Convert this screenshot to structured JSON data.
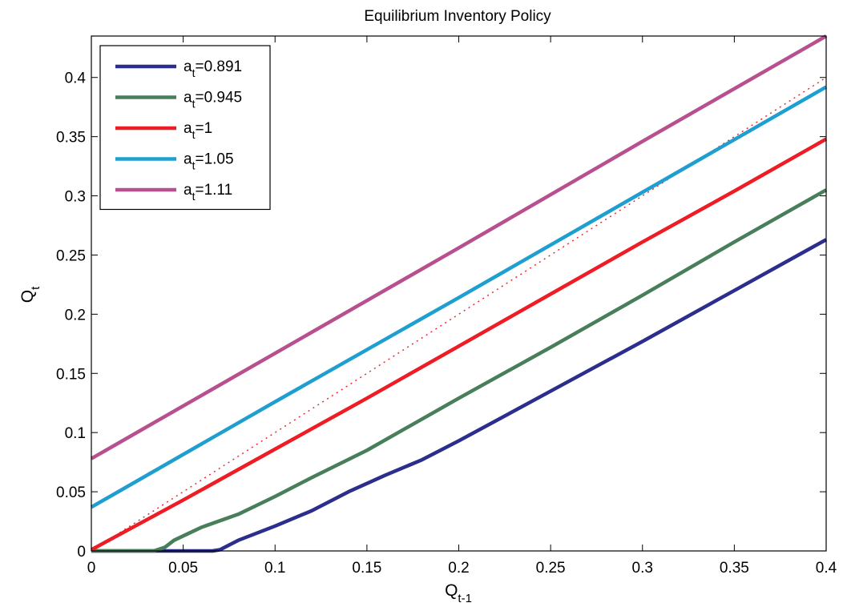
{
  "chart_data": {
    "type": "line",
    "title": "Equilibrium Inventory Policy",
    "xlabel": {
      "base": "Q",
      "sub": "t-1"
    },
    "ylabel": {
      "base": "Q",
      "sub": "t"
    },
    "xlim": [
      0,
      0.4
    ],
    "ylim": [
      0,
      0.435
    ],
    "xticks": [
      0,
      0.05,
      0.1,
      0.15,
      0.2,
      0.25,
      0.3,
      0.35,
      0.4
    ],
    "xtick_labels": [
      "0",
      "0.05",
      "0.1",
      "0.15",
      "0.2",
      "0.25",
      "0.3",
      "0.35",
      "0.4"
    ],
    "yticks": [
      0,
      0.05,
      0.1,
      0.15,
      0.2,
      0.25,
      0.3,
      0.35,
      0.4
    ],
    "ytick_labels": [
      "0",
      "0.05",
      "0.1",
      "0.15",
      "0.2",
      "0.25",
      "0.3",
      "0.35",
      "0.4"
    ],
    "grid": false,
    "legend_position": "top-left",
    "series": [
      {
        "name": "a_t=0.891",
        "label_base": "a",
        "label_sub": "t",
        "label_rest": "=0.891",
        "color": "#2b2e8c",
        "style": "solid",
        "x": [
          0,
          0.066,
          0.07,
          0.08,
          0.1,
          0.12,
          0.14,
          0.16,
          0.18,
          0.2,
          0.25,
          0.3,
          0.35,
          0.4
        ],
        "y": [
          0,
          0,
          0.001,
          0.009,
          0.021,
          0.034,
          0.05,
          0.064,
          0.077,
          0.093,
          0.135,
          0.177,
          0.22,
          0.263
        ]
      },
      {
        "name": "a_t=0.945",
        "label_base": "a",
        "label_sub": "t",
        "label_rest": "=0.945",
        "color": "#497e5b",
        "style": "solid",
        "x": [
          0,
          0.034,
          0.04,
          0.045,
          0.06,
          0.08,
          0.1,
          0.12,
          0.15,
          0.2,
          0.25,
          0.3,
          0.35,
          0.4
        ],
        "y": [
          0,
          0,
          0.003,
          0.009,
          0.02,
          0.031,
          0.046,
          0.062,
          0.085,
          0.129,
          0.172,
          0.216,
          0.261,
          0.305
        ]
      },
      {
        "name": "a_t=1",
        "label_base": "a",
        "label_sub": "t",
        "label_rest": "=1",
        "color": "#ee1c24",
        "style": "solid",
        "x": [
          0,
          0.05,
          0.1,
          0.15,
          0.2,
          0.25,
          0.3,
          0.35,
          0.4
        ],
        "y": [
          0.001,
          0.043,
          0.086,
          0.129,
          0.173,
          0.217,
          0.261,
          0.304,
          0.348
        ]
      },
      {
        "name": "a_t=1.05",
        "label_base": "a",
        "label_sub": "t",
        "label_rest": "=1.05",
        "color": "#1e9fd0",
        "style": "solid",
        "x": [
          0,
          0.1,
          0.2,
          0.3,
          0.4
        ],
        "y": [
          0.037,
          0.126,
          0.214,
          0.303,
          0.392
        ]
      },
      {
        "name": "a_t=1.11",
        "label_base": "a",
        "label_sub": "t",
        "label_rest": "=1.11",
        "color": "#b8508f",
        "style": "solid",
        "x": [
          0,
          0.1,
          0.2,
          0.3,
          0.4
        ],
        "y": [
          0.078,
          0.167,
          0.256,
          0.346,
          0.435
        ]
      }
    ],
    "reference_line": {
      "color": "#ee1c24",
      "style": "dotted",
      "x": [
        0,
        0.4
      ],
      "y": [
        0,
        0.4
      ]
    }
  }
}
